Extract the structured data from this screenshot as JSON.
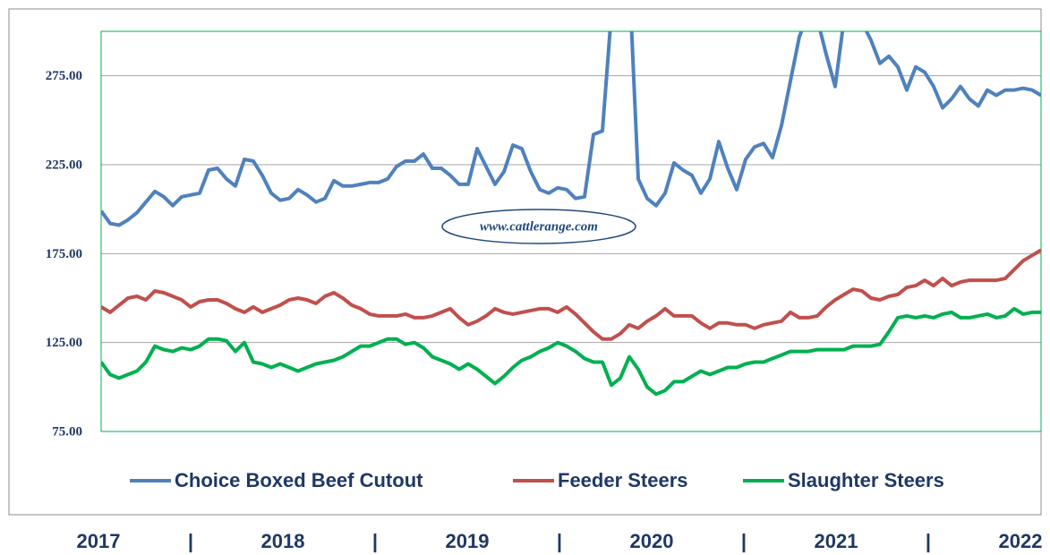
{
  "chart_data": {
    "type": "line",
    "watermark": "www.cattlerange.com",
    "x_labels": [
      "2017",
      "|",
      "2018",
      "|",
      "2019",
      "|",
      "2020",
      "|",
      "2021",
      "|",
      "2022"
    ],
    "x": [
      2017,
      2017.05,
      2017.1,
      2017.15,
      2017.2,
      2017.25,
      2017.3,
      2017.35,
      2017.4,
      2017.45,
      2017.5,
      2017.55,
      2017.6,
      2017.65,
      2017.7,
      2017.75,
      2017.8,
      2017.85,
      2017.9,
      2017.95,
      2018,
      2018.05,
      2018.1,
      2018.15,
      2018.2,
      2018.25,
      2018.3,
      2018.35,
      2018.4,
      2018.45,
      2018.5,
      2018.55,
      2018.6,
      2018.65,
      2018.7,
      2018.75,
      2018.8,
      2018.85,
      2018.9,
      2018.95,
      2019,
      2019.05,
      2019.1,
      2019.15,
      2019.2,
      2019.25,
      2019.3,
      2019.35,
      2019.4,
      2019.45,
      2019.5,
      2019.55,
      2019.6,
      2019.65,
      2019.7,
      2019.75,
      2019.8,
      2019.85,
      2019.9,
      2019.95,
      2020,
      2020.05,
      2020.1,
      2020.15,
      2020.2,
      2020.25,
      2020.3,
      2020.35,
      2020.4,
      2020.45,
      2020.5,
      2020.55,
      2020.6,
      2020.65,
      2020.7,
      2020.75,
      2020.8,
      2020.85,
      2020.9,
      2020.95,
      2021,
      2021.05,
      2021.1,
      2021.15,
      2021.2,
      2021.25,
      2021.3,
      2021.35,
      2021.4,
      2021.45,
      2021.5,
      2021.55,
      2021.6,
      2021.65,
      2021.7,
      2021.75,
      2021.8,
      2021.85,
      2021.9,
      2021.95,
      2022,
      2022.05,
      2022.1,
      2022.15,
      2022.2,
      2022.25
    ],
    "xlim": [
      2017,
      2022.25
    ],
    "ylim": [
      75,
      300
    ],
    "yticks": [
      {
        "value": 75,
        "label": "75.00"
      },
      {
        "value": 125,
        "label": "125.00"
      },
      {
        "value": 175,
        "label": "175.00"
      },
      {
        "value": 225,
        "label": "225.00"
      },
      {
        "value": 275,
        "label": "275.00"
      }
    ],
    "grid": true,
    "series": [
      {
        "name": "Choice Boxed Beef Cutout",
        "color": "#4f81bd",
        "values": [
          199,
          192,
          191,
          194,
          198,
          204,
          210,
          207,
          202,
          207,
          208,
          209,
          222,
          223,
          217,
          213,
          228,
          227,
          219,
          209,
          205,
          206,
          211,
          208,
          204,
          206,
          216,
          213,
          213,
          214,
          215,
          215,
          217,
          224,
          227,
          227,
          231,
          223,
          223,
          219,
          214,
          214,
          234,
          224,
          214,
          221,
          236,
          234,
          221,
          211,
          209,
          212,
          211,
          206,
          207,
          242,
          244,
          310,
          350,
          330,
          217,
          206,
          202,
          209,
          226,
          222,
          219,
          209,
          217,
          238,
          223,
          211,
          228,
          235,
          237,
          229,
          247,
          272,
          297,
          310,
          307,
          287,
          269,
          307,
          310,
          305,
          295,
          282,
          286,
          280,
          267,
          280,
          277,
          269,
          257,
          262,
          269,
          262,
          258,
          267,
          264,
          267,
          267,
          268,
          267,
          264
        ]
      },
      {
        "name": "Feeder Steers",
        "color": "#c0504d",
        "values": [
          145,
          142,
          146,
          150,
          151,
          149,
          154,
          153,
          151,
          149,
          145,
          148,
          149,
          149,
          147,
          144,
          142,
          145,
          142,
          144,
          146,
          149,
          150,
          149,
          147,
          151,
          153,
          150,
          146,
          144,
          141,
          140,
          140,
          140,
          141,
          139,
          139,
          140,
          142,
          144,
          139,
          135,
          137,
          140,
          144,
          142,
          141,
          142,
          143,
          144,
          144,
          142,
          145,
          141,
          136,
          131,
          127,
          127,
          130,
          135,
          133,
          137,
          140,
          144,
          140,
          140,
          140,
          136,
          133,
          136,
          136,
          135,
          135,
          133,
          135,
          136,
          137,
          142,
          139,
          139,
          140,
          145,
          149,
          152,
          155,
          154,
          150,
          149,
          151,
          152,
          156,
          157,
          160,
          157,
          161,
          157,
          159,
          160,
          160,
          160,
          160,
          161,
          166,
          171,
          174,
          177
        ]
      },
      {
        "name": "Slaughter Steers",
        "color": "#00b050",
        "values": [
          114,
          107,
          105,
          107,
          109,
          114,
          123,
          121,
          120,
          122,
          121,
          123,
          127,
          127,
          126,
          120,
          125,
          114,
          113,
          111,
          113,
          111,
          109,
          111,
          113,
          114,
          115,
          117,
          120,
          123,
          123,
          125,
          127,
          127,
          124,
          125,
          122,
          117,
          115,
          113,
          110,
          113,
          110,
          106,
          102,
          106,
          111,
          115,
          117,
          120,
          122,
          125,
          123,
          120,
          116,
          114,
          114,
          101,
          105,
          117,
          110,
          100,
          96,
          98,
          103,
          103,
          106,
          109,
          107,
          109,
          111,
          111,
          113,
          114,
          114,
          116,
          118,
          120,
          120,
          120,
          121,
          121,
          121,
          121,
          123,
          123,
          123,
          124,
          131,
          139,
          140,
          139,
          140,
          139,
          141,
          142,
          139,
          139,
          140,
          141,
          139,
          140,
          144,
          141,
          142,
          142
        ]
      }
    ]
  }
}
